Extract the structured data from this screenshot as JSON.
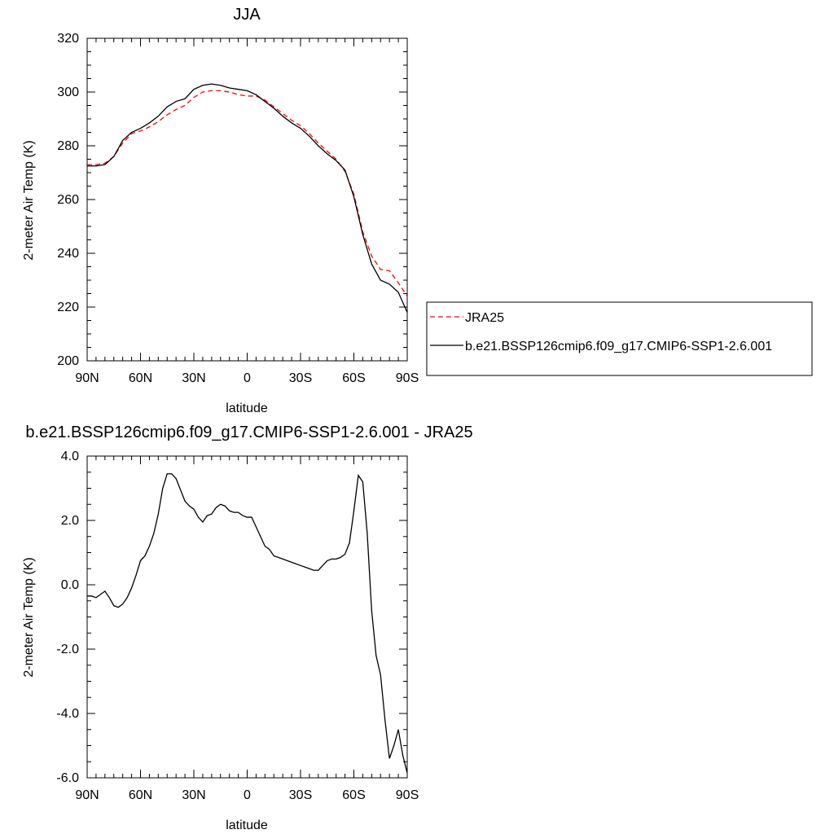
{
  "chart_data": [
    {
      "type": "line",
      "title": "JJA",
      "xlabel": "latitude",
      "ylabel": "2-meter Air Temp (K)",
      "xlim": [
        90,
        -90
      ],
      "ylim": [
        200,
        320
      ],
      "xticks": [
        90,
        60,
        30,
        0,
        -30,
        -60,
        -90
      ],
      "xtick_labels": [
        "90N",
        "60N",
        "30N",
        "0",
        "30S",
        "60S",
        "90S"
      ],
      "yticks": [
        200,
        220,
        240,
        260,
        280,
        300,
        320
      ],
      "ytick_labels": [
        "200",
        "220",
        "240",
        "260",
        "280",
        "300",
        "320"
      ],
      "grid": false,
      "legend": "right",
      "series": [
        {
          "name": "JRA25",
          "color": "#ff0000",
          "dash": "dashed",
          "x": [
            90,
            85,
            80,
            75,
            70,
            65,
            60,
            55,
            50,
            45,
            40,
            35,
            30,
            25,
            20,
            15,
            10,
            5,
            0,
            -5,
            -10,
            -15,
            -20,
            -25,
            -30,
            -35,
            -40,
            -45,
            -50,
            -55,
            -60,
            -65,
            -70,
            -75,
            -80,
            -85,
            -90
          ],
          "values": [
            273,
            273,
            273.5,
            276,
            281,
            284.5,
            285.5,
            287,
            289,
            291.5,
            293.5,
            295,
            298,
            300,
            300.5,
            300.5,
            300,
            299,
            298.5,
            298.5,
            297,
            294.5,
            292,
            289.5,
            287.5,
            284.5,
            281,
            278,
            275,
            270.5,
            262,
            248,
            239,
            234,
            233.5,
            229,
            224
          ]
        },
        {
          "name": "b.e21.BSSP126cmip6.f09_g17.CMIP6-SSP1-2.6.001",
          "color": "#000000",
          "dash": "solid",
          "x": [
            90,
            85,
            80,
            75,
            70,
            65,
            60,
            55,
            50,
            45,
            40,
            35,
            30,
            25,
            20,
            15,
            10,
            5,
            0,
            -5,
            -10,
            -15,
            -20,
            -25,
            -30,
            -35,
            -40,
            -45,
            -50,
            -55,
            -60,
            -65,
            -70,
            -75,
            -80,
            -85,
            -90
          ],
          "values": [
            272.5,
            272.5,
            273,
            276,
            282,
            285,
            286.5,
            288.5,
            291,
            294.5,
            296.5,
            297.5,
            301,
            302.5,
            303,
            302.5,
            301.5,
            301,
            300.5,
            299,
            296.5,
            294,
            291,
            288.5,
            286.5,
            283.5,
            280,
            277,
            274.5,
            271,
            261,
            247,
            236,
            230,
            228.5,
            225.5,
            218
          ]
        }
      ]
    },
    {
      "type": "line",
      "title": "b.e21.BSSP126cmip6.f09_g17.CMIP6-SSP1-2.6.001 - JRA25",
      "xlabel": "latitude",
      "ylabel": "2-meter Air Temp (K)",
      "xlim": [
        90,
        -90
      ],
      "ylim": [
        -6,
        4
      ],
      "xticks": [
        90,
        60,
        30,
        0,
        -30,
        -60,
        -90
      ],
      "xtick_labels": [
        "90N",
        "60N",
        "30N",
        "0",
        "30S",
        "60S",
        "90S"
      ],
      "yticks": [
        -6,
        -4,
        -2,
        0,
        2,
        4
      ],
      "ytick_labels": [
        "-6.0",
        "-4.0",
        "-2.0",
        "0.0",
        "2.0",
        "4.0"
      ],
      "grid": false,
      "series": [
        {
          "color": "#000000",
          "dash": "solid",
          "x": [
            90,
            87.5,
            85,
            82.5,
            80,
            77.5,
            75,
            72.5,
            70,
            67.5,
            65,
            62.5,
            60,
            57.5,
            55,
            52.5,
            50,
            47.5,
            45,
            42.5,
            40,
            37.5,
            35,
            32.5,
            30,
            27.5,
            25,
            22.5,
            20,
            17.5,
            15,
            12.5,
            10,
            7.5,
            5,
            2.5,
            0,
            -2.5,
            -5,
            -7.5,
            -10,
            -12.5,
            -15,
            -17.5,
            -20,
            -22.5,
            -25,
            -27.5,
            -30,
            -32.5,
            -35,
            -37.5,
            -40,
            -42.5,
            -45,
            -47.5,
            -50,
            -52.5,
            -55,
            -57.5,
            -60,
            -62.5,
            -65,
            -67.5,
            -70,
            -72.5,
            -75,
            -77.5,
            -80,
            -82.5,
            -85,
            -87.5,
            -90
          ],
          "values": [
            -0.35,
            -0.35,
            -0.4,
            -0.3,
            -0.2,
            -0.4,
            -0.65,
            -0.7,
            -0.6,
            -0.4,
            -0.1,
            0.3,
            0.75,
            0.9,
            1.2,
            1.6,
            2.2,
            3.0,
            3.45,
            3.45,
            3.3,
            2.95,
            2.6,
            2.45,
            2.35,
            2.1,
            1.95,
            2.15,
            2.2,
            2.4,
            2.5,
            2.45,
            2.3,
            2.25,
            2.25,
            2.15,
            2.1,
            2.1,
            1.8,
            1.5,
            1.2,
            1.1,
            0.9,
            0.85,
            0.8,
            0.75,
            0.7,
            0.65,
            0.6,
            0.55,
            0.5,
            0.45,
            0.45,
            0.6,
            0.75,
            0.8,
            0.8,
            0.85,
            0.95,
            1.3,
            2.3,
            3.4,
            3.2,
            1.6,
            -0.8,
            -2.2,
            -2.8,
            -4.2,
            -5.4,
            -5.0,
            -4.5,
            -5.3,
            -5.85
          ]
        }
      ]
    }
  ]
}
